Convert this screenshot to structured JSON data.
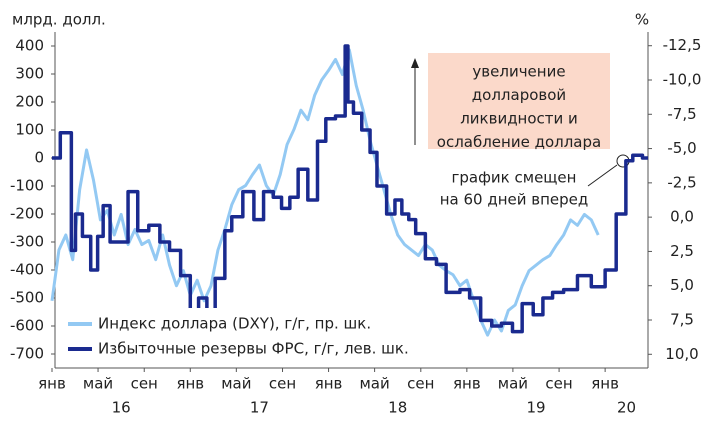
{
  "chart_data": {
    "type": "line",
    "y_label": "млрд. долл.",
    "y2_label": "%",
    "xlim": [
      16.0,
      20.31
    ],
    "xticks": [
      {
        "value": 16.0,
        "label": "янв"
      },
      {
        "value": 16.333,
        "label": "май"
      },
      {
        "value": 16.667,
        "label": "сен"
      },
      {
        "value": 17.0,
        "label": "янв"
      },
      {
        "value": 17.333,
        "label": "май"
      },
      {
        "value": 17.667,
        "label": "сен"
      },
      {
        "value": 18.0,
        "label": "янв"
      },
      {
        "value": 18.333,
        "label": "май"
      },
      {
        "value": 18.667,
        "label": "сен"
      },
      {
        "value": 19.0,
        "label": "янв"
      },
      {
        "value": 19.333,
        "label": "май"
      },
      {
        "value": 19.667,
        "label": "сен"
      },
      {
        "value": 20.0,
        "label": "янв"
      }
    ],
    "year_ticks": [
      16,
      17,
      18,
      19,
      20
    ],
    "ylim": [
      -750,
      450
    ],
    "yticks": [
      400,
      300,
      200,
      100,
      0,
      -100,
      -200,
      -300,
      -400,
      -500,
      -600,
      -700
    ],
    "y2lim": [
      11,
      -13.5
    ],
    "y2ticks": [
      {
        "value": -12.5,
        "label": "-12,5"
      },
      {
        "value": -10,
        "label": "-10,0"
      },
      {
        "value": -7.5,
        "label": "-7,5"
      },
      {
        "value": -5,
        "label": "-5,0"
      },
      {
        "value": -2.5,
        "label": "-2,5"
      },
      {
        "value": 0,
        "label": "0,0"
      },
      {
        "value": 2.5,
        "label": "2,5"
      },
      {
        "value": 5,
        "label": "5,0"
      },
      {
        "value": 7.5,
        "label": "7,5"
      },
      {
        "value": 10,
        "label": "10,0"
      }
    ],
    "legend": "lower left",
    "series": [
      {
        "name": "Индекс доллара (DXY), г/г, пр. шк.",
        "color": "#93c9f3",
        "axis": "y2",
        "step": false,
        "x": [
          16.0,
          16.05,
          16.1,
          16.15,
          16.2,
          16.25,
          16.3,
          16.35,
          16.4,
          16.45,
          16.5,
          16.55,
          16.6,
          16.65,
          16.7,
          16.75,
          16.8,
          16.85,
          16.9,
          16.95,
          17.0,
          17.05,
          17.1,
          17.15,
          17.2,
          17.25,
          17.3,
          17.35,
          17.4,
          17.45,
          17.5,
          17.55,
          17.6,
          17.65,
          17.7,
          17.75,
          17.8,
          17.85,
          17.9,
          17.95,
          18.0,
          18.05,
          18.1,
          18.15,
          18.2,
          18.25,
          18.3,
          18.35,
          18.4,
          18.45,
          18.5,
          18.55,
          18.6,
          18.65,
          18.7,
          18.75,
          18.8,
          18.85,
          18.9,
          18.95,
          19.0,
          19.05,
          19.1,
          19.15,
          19.2,
          19.25,
          19.3,
          19.35,
          19.4,
          19.45,
          19.5,
          19.55,
          19.6,
          19.65,
          19.7,
          19.75,
          19.8,
          19.85,
          19.9,
          19.95
        ],
        "values": [
          6.1,
          2.4,
          1.3,
          3.1,
          -2.0,
          -4.9,
          -2.7,
          0.2,
          -0.5,
          1.3,
          -0.2,
          2.0,
          0.9,
          2.0,
          1.7,
          3.1,
          1.3,
          3.5,
          5.0,
          3.9,
          5.7,
          4.6,
          6.1,
          5.0,
          2.4,
          0.9,
          -0.9,
          -2.0,
          -2.3,
          -3.1,
          -3.8,
          -2.3,
          -1.6,
          -3.1,
          -5.3,
          -6.4,
          -7.8,
          -7.1,
          -8.9,
          -10.0,
          -10.7,
          -11.5,
          -10.4,
          -12.2,
          -9.6,
          -7.8,
          -5.6,
          -3.8,
          -2.0,
          -0.2,
          1.3,
          2.0,
          2.4,
          2.8,
          2.0,
          2.4,
          3.5,
          3.9,
          4.2,
          5.0,
          4.6,
          6.1,
          7.5,
          8.6,
          7.5,
          8.3,
          6.8,
          6.4,
          5.0,
          3.9,
          3.5,
          3.1,
          2.8,
          2.0,
          1.3,
          0.2,
          0.6,
          -0.2,
          0.2,
          1.3
        ]
      },
      {
        "name": "Избыточные резервы ФРС, г/г, лев. шк.",
        "color": "#1a2a8f",
        "axis": "y",
        "step": true,
        "x": [
          16.0,
          16.06,
          16.14,
          16.17,
          16.22,
          16.28,
          16.33,
          16.37,
          16.42,
          16.48,
          16.55,
          16.62,
          16.7,
          16.78,
          16.85,
          16.93,
          17.0,
          17.06,
          17.12,
          17.18,
          17.25,
          17.3,
          17.38,
          17.46,
          17.53,
          17.6,
          17.66,
          17.72,
          17.78,
          17.85,
          17.92,
          17.98,
          18.05,
          18.12,
          18.14,
          18.18,
          18.24,
          18.3,
          18.35,
          18.42,
          18.48,
          18.53,
          18.58,
          18.63,
          18.7,
          18.78,
          18.85,
          18.95,
          19.02,
          19.1,
          19.18,
          19.25,
          19.33,
          19.4,
          19.48,
          19.55,
          19.62,
          19.7,
          19.8,
          19.9,
          20.0,
          20.08,
          20.15,
          20.2,
          20.27,
          20.31
        ],
        "values": [
          0,
          90,
          -330,
          -200,
          -280,
          -400,
          -280,
          -170,
          -300,
          -300,
          -120,
          -260,
          -240,
          -300,
          -330,
          -420,
          -590,
          -500,
          -580,
          -430,
          -260,
          -210,
          -120,
          -220,
          -120,
          -140,
          -180,
          -140,
          -40,
          -150,
          60,
          140,
          150,
          400,
          200,
          160,
          100,
          20,
          -100,
          -200,
          -150,
          -200,
          -220,
          -270,
          -360,
          -380,
          -480,
          -470,
          -500,
          -580,
          -600,
          -590,
          -620,
          -520,
          -560,
          -500,
          -480,
          -470,
          -420,
          -460,
          -400,
          -200,
          -10,
          10,
          0,
          0
        ]
      }
    ],
    "annotations": [
      {
        "lines": [
          "увеличение",
          "долларовой",
          "ликвидности и",
          "ослабление доллара"
        ]
      },
      {
        "lines": [
          "график смещен",
          "на 60 дней вперед"
        ]
      }
    ]
  }
}
